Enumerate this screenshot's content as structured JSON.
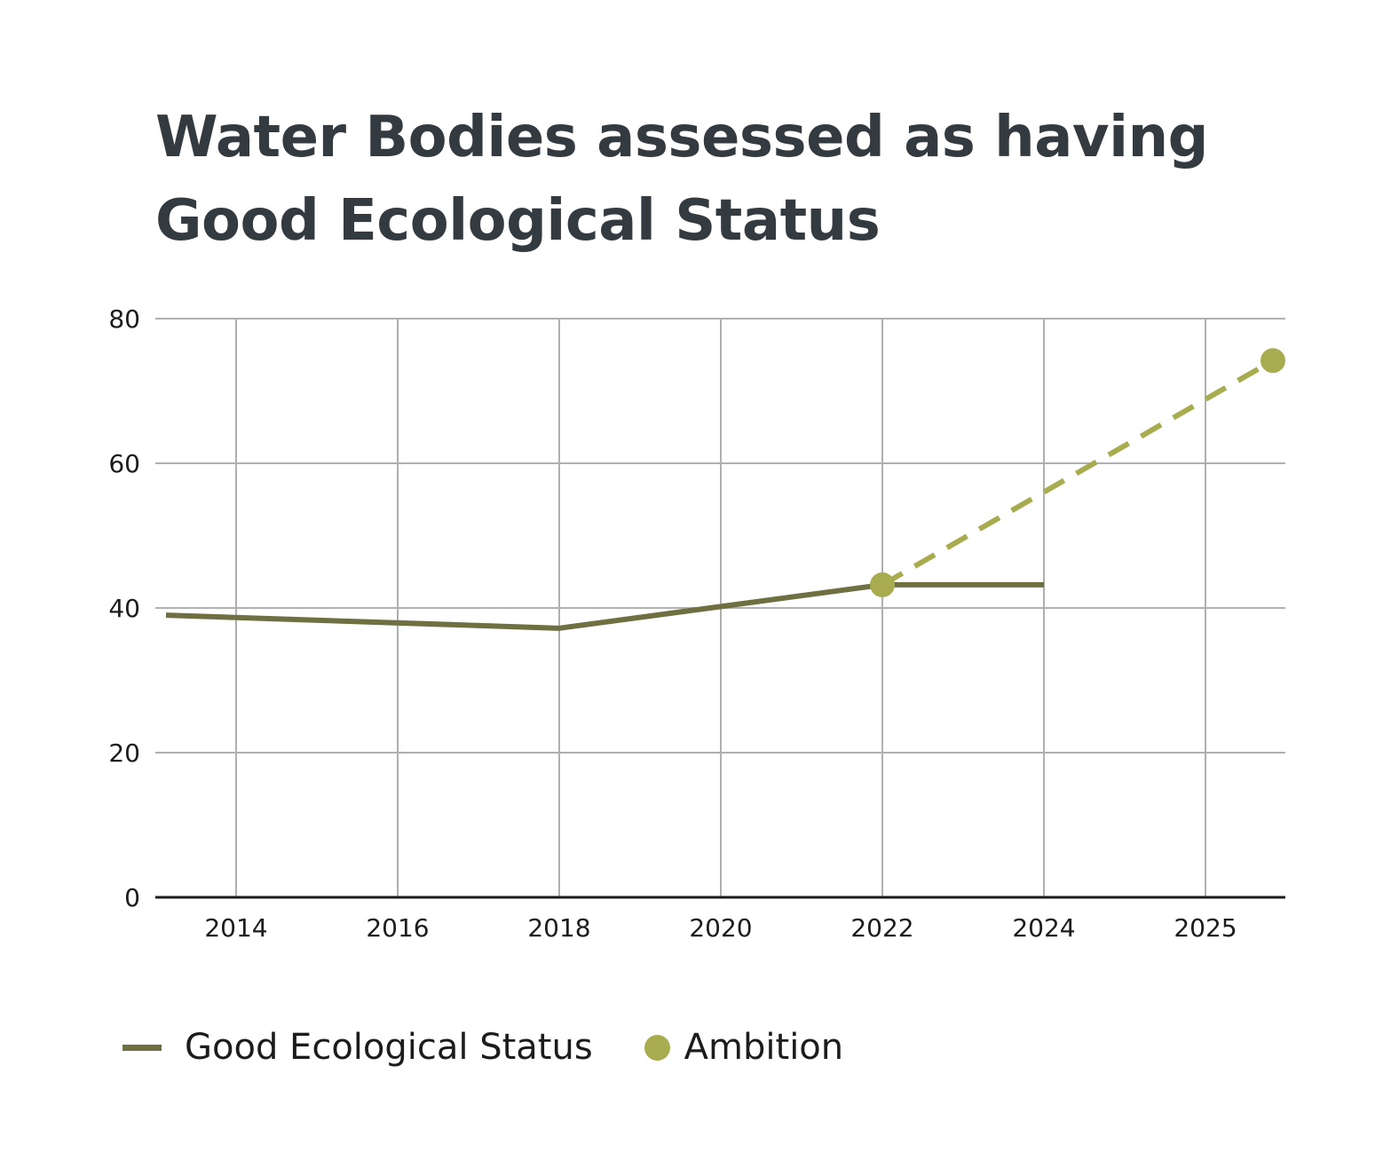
{
  "chart_data": {
    "type": "line",
    "title_lines": [
      "Water Bodies assessed as having",
      "Good Ecological Status"
    ],
    "xlabel": "",
    "ylabel": "",
    "ylim": [
      0,
      80
    ],
    "yticks": [
      0,
      20,
      40,
      60,
      80
    ],
    "x_tick_labels": [
      "2014",
      "2016",
      "2018",
      "2020",
      "2022",
      "2024",
      "2025"
    ],
    "grid": true,
    "legend_position": "bottom-left",
    "series": [
      {
        "name": "Good Ecological Status",
        "style": "solid",
        "color": "#6e7042",
        "points": [
          {
            "x": "2013",
            "y": 39
          },
          {
            "x": "2018",
            "y": 37.2
          },
          {
            "x": "2020",
            "y": 40.2
          },
          {
            "x": "2022",
            "y": 43.2
          },
          {
            "x": "2024",
            "y": 43.2
          }
        ]
      },
      {
        "name": "Ambition",
        "style": "dashed-with-markers",
        "color": "#a8ab4e",
        "points": [
          {
            "x": "2022",
            "y": 43.2
          },
          {
            "x": "2027",
            "y": 74.2
          }
        ]
      }
    ]
  }
}
